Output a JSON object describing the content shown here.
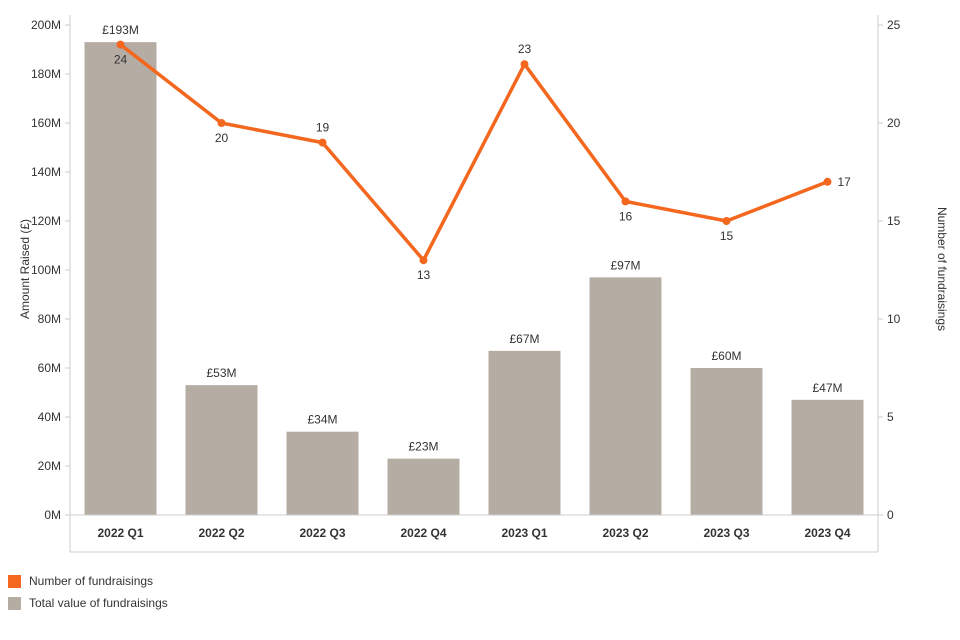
{
  "chart_data": {
    "type": "bar",
    "subtype": "combo-bar-line",
    "categories": [
      "2022 Q1",
      "2022 Q2",
      "2022 Q3",
      "2022 Q4",
      "2023 Q1",
      "2023 Q2",
      "2023 Q3",
      "2023 Q4"
    ],
    "series": [
      {
        "name": "Total value of fundraisings",
        "type": "bar",
        "axis": "left",
        "values": [
          193,
          53,
          34,
          23,
          67,
          97,
          60,
          47
        ],
        "labels": [
          "£193M",
          "£53M",
          "£34M",
          "£23M",
          "£67M",
          "£97M",
          "£60M",
          "£47M"
        ],
        "color": "#b5aca3"
      },
      {
        "name": "Number of fundraisings",
        "type": "line",
        "axis": "right",
        "values": [
          24,
          20,
          19,
          13,
          23,
          16,
          15,
          17
        ],
        "labels": [
          "24",
          "20",
          "19",
          "13",
          "23",
          "16",
          "15",
          "17"
        ],
        "label_positions": [
          "below",
          "below",
          "above",
          "below",
          "above",
          "below",
          "below",
          "right"
        ],
        "color": "#f4671e"
      }
    ],
    "left_axis": {
      "label": "Amount Raised (£)",
      "min": 0,
      "max": 200,
      "tick_values": [
        0,
        20,
        40,
        60,
        80,
        100,
        120,
        140,
        160,
        180,
        200
      ],
      "tick_labels": [
        "0M",
        "20M",
        "40M",
        "60M",
        "80M",
        "100M",
        "120M",
        "140M",
        "160M",
        "180M",
        "200M"
      ]
    },
    "right_axis": {
      "label": "Number of fundraisings",
      "min": 0,
      "max": 25,
      "tick_values": [
        0,
        5,
        10,
        15,
        20,
        25
      ],
      "tick_labels": [
        "0",
        "5",
        "10",
        "15",
        "20",
        "25"
      ]
    },
    "grid": false,
    "legend_position": "bottom-left",
    "legend": [
      {
        "label": "Number of fundraisings",
        "color": "#f4671e"
      },
      {
        "label": "Total value of fundraisings",
        "color": "#b5aca3"
      }
    ],
    "frame_color": "#cccccc",
    "text_color": "#333333"
  }
}
